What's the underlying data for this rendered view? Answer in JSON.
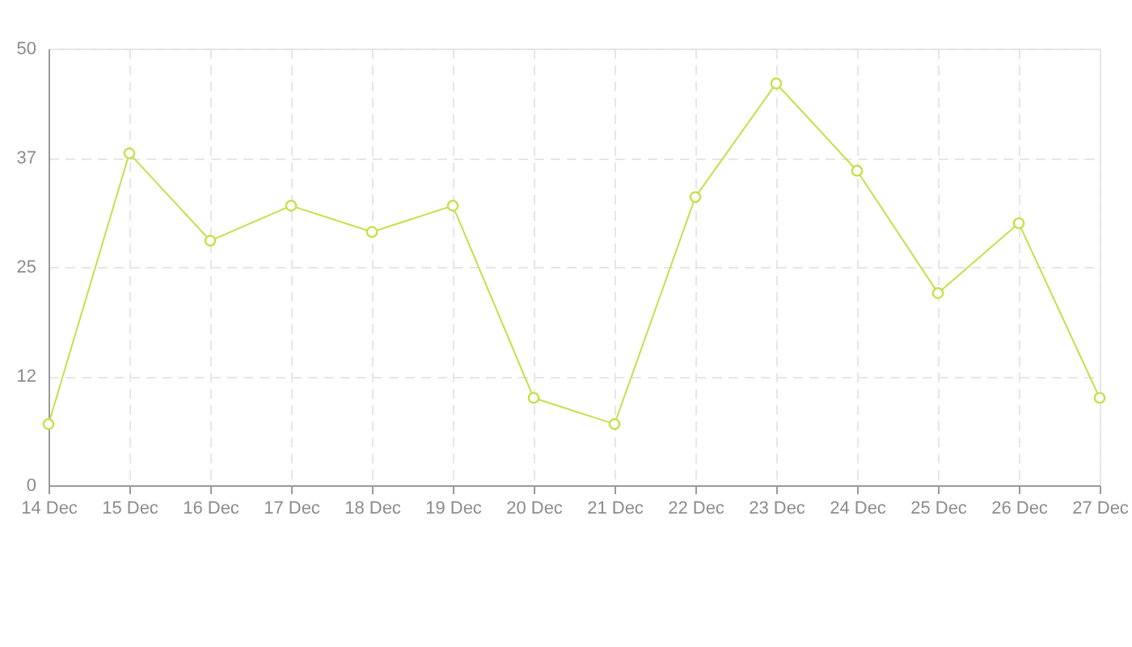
{
  "chart_data": {
    "type": "line",
    "categories": [
      "14 Dec",
      "15 Dec",
      "16 Dec",
      "17 Dec",
      "18 Dec",
      "19 Dec",
      "20 Dec",
      "21 Dec",
      "22 Dec",
      "23 Dec",
      "24 Dec",
      "25 Dec",
      "26 Dec",
      "27 Dec"
    ],
    "series": [
      {
        "color": "#c6df4c",
        "values": [
          7,
          38,
          28,
          32,
          29,
          32,
          10,
          7,
          33,
          46,
          36,
          22,
          30,
          10
        ]
      }
    ],
    "ylim": [
      0,
      50
    ],
    "yticks": [
      0,
      {
        "value": 12.5,
        "label": "12"
      },
      25,
      {
        "value": 37.5,
        "label": "37"
      },
      50
    ],
    "grid": true,
    "marker": "circle",
    "line_style": "solid"
  }
}
